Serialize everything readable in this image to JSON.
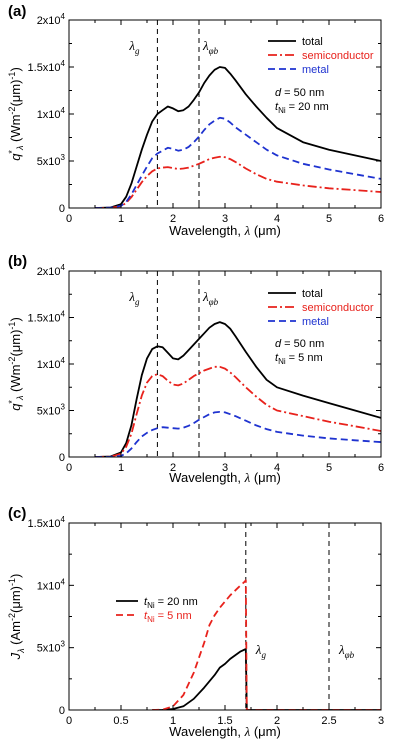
{
  "chart_data": [
    {
      "panel_label": "(a)",
      "type": "line",
      "xlabel": "Wavelength, λ (μm)",
      "ylabel": "q*λ (Wm-2(μm)-1)",
      "xlim": [
        0,
        6
      ],
      "ylim": [
        0,
        20000
      ],
      "x_ticks": [
        "0",
        "1",
        "2",
        "3",
        "4",
        "5",
        "6"
      ],
      "y_ticks": [
        "0",
        "5x10^3",
        "1x10^4",
        "1.5x10^4",
        "2x10^4"
      ],
      "vlines": [
        {
          "x": 1.7,
          "label": "λg"
        },
        {
          "x": 2.5,
          "label": "λφb"
        }
      ],
      "annotation": [
        "d = 50 nm",
        "tNi = 20 nm"
      ],
      "legend_position": "top-right",
      "series": [
        {
          "name": "total",
          "color": "#000000",
          "dash": "solid",
          "x": [
            0.5,
            0.8,
            1.0,
            1.1,
            1.2,
            1.3,
            1.4,
            1.5,
            1.6,
            1.7,
            1.8,
            1.9,
            2.0,
            2.1,
            2.2,
            2.3,
            2.4,
            2.5,
            2.6,
            2.7,
            2.8,
            2.9,
            3.0,
            3.1,
            3.2,
            3.4,
            3.6,
            3.8,
            4.0,
            4.5,
            5.0,
            5.5,
            6.0
          ],
          "values": [
            0,
            50,
            400,
            1200,
            2600,
            4400,
            6200,
            7800,
            9200,
            10000,
            10400,
            10800,
            10600,
            10300,
            10400,
            10800,
            11500,
            12300,
            13300,
            14100,
            14700,
            15000,
            14900,
            14300,
            13600,
            12100,
            10800,
            9600,
            8500,
            7000,
            6200,
            5600,
            5000
          ]
        },
        {
          "name": "semiconductor",
          "color": "#e8221c",
          "dash": "dashdot",
          "x": [
            0.5,
            0.8,
            1.0,
            1.1,
            1.2,
            1.3,
            1.4,
            1.5,
            1.6,
            1.7,
            1.8,
            1.9,
            2.0,
            2.1,
            2.2,
            2.3,
            2.4,
            2.5,
            2.6,
            2.7,
            2.8,
            2.9,
            3.0,
            3.1,
            3.2,
            3.4,
            3.6,
            3.8,
            4.0,
            4.5,
            5.0,
            5.5,
            6.0
          ],
          "values": [
            0,
            20,
            180,
            550,
            1150,
            1950,
            2750,
            3400,
            3900,
            4200,
            4300,
            4350,
            4250,
            4150,
            4200,
            4300,
            4500,
            4700,
            4950,
            5200,
            5350,
            5450,
            5400,
            5200,
            4900,
            4200,
            3600,
            3100,
            2800,
            2400,
            2100,
            1900,
            1700
          ]
        },
        {
          "name": "metal",
          "color": "#1f33d0",
          "dash": "dashed",
          "x": [
            0.5,
            0.8,
            1.0,
            1.1,
            1.2,
            1.3,
            1.4,
            1.5,
            1.6,
            1.7,
            1.8,
            1.9,
            2.0,
            2.1,
            2.2,
            2.3,
            2.4,
            2.5,
            2.6,
            2.7,
            2.8,
            2.9,
            3.0,
            3.1,
            3.2,
            3.4,
            3.6,
            3.8,
            4.0,
            4.5,
            5.0,
            5.5,
            6.0
          ],
          "values": [
            0,
            30,
            220,
            650,
            1450,
            2450,
            3450,
            4400,
            5300,
            5800,
            6100,
            6400,
            6300,
            6100,
            6200,
            6500,
            7000,
            7600,
            8300,
            8900,
            9300,
            9600,
            9500,
            9100,
            8600,
            7800,
            7000,
            6200,
            5600,
            4700,
            4100,
            3600,
            3100
          ]
        }
      ]
    },
    {
      "panel_label": "(b)",
      "type": "line",
      "xlabel": "Wavelength, λ (μm)",
      "ylabel": "q*λ (Wm-2(μm)-1)",
      "xlim": [
        0,
        6
      ],
      "ylim": [
        0,
        20000
      ],
      "x_ticks": [
        "0",
        "1",
        "2",
        "3",
        "4",
        "5",
        "6"
      ],
      "y_ticks": [
        "0",
        "5x10^3",
        "1x10^4",
        "1.5x10^4",
        "2x10^4"
      ],
      "vlines": [
        {
          "x": 1.7,
          "label": "λg"
        },
        {
          "x": 2.5,
          "label": "λφb"
        }
      ],
      "annotation": [
        "d = 50 nm",
        "tNi = 5 nm"
      ],
      "legend_position": "top-right",
      "series": [
        {
          "name": "total",
          "color": "#000000",
          "dash": "solid",
          "x": [
            0.5,
            0.8,
            1.0,
            1.1,
            1.2,
            1.3,
            1.4,
            1.5,
            1.6,
            1.7,
            1.8,
            1.9,
            2.0,
            2.1,
            2.2,
            2.3,
            2.4,
            2.5,
            2.6,
            2.7,
            2.8,
            2.9,
            3.0,
            3.1,
            3.2,
            3.4,
            3.6,
            3.8,
            4.0,
            4.5,
            5.0,
            5.5,
            6.0
          ],
          "values": [
            0,
            50,
            500,
            1500,
            3400,
            6200,
            8800,
            10600,
            11600,
            11900,
            11800,
            11200,
            10600,
            10500,
            10900,
            11500,
            12100,
            12700,
            13300,
            13900,
            14300,
            14500,
            14300,
            13800,
            13000,
            11300,
            9700,
            8300,
            7500,
            6600,
            5800,
            5000,
            4200
          ]
        },
        {
          "name": "semiconductor",
          "color": "#e8221c",
          "dash": "dashdot",
          "x": [
            0.5,
            0.8,
            1.0,
            1.1,
            1.2,
            1.3,
            1.4,
            1.5,
            1.6,
            1.7,
            1.8,
            1.9,
            2.0,
            2.1,
            2.2,
            2.3,
            2.4,
            2.5,
            2.6,
            2.7,
            2.8,
            2.9,
            3.0,
            3.1,
            3.2,
            3.4,
            3.6,
            3.8,
            4.0,
            4.5,
            5.0,
            5.5,
            6.0
          ],
          "values": [
            0,
            30,
            350,
            1100,
            2500,
            4600,
            6600,
            8000,
            8700,
            8900,
            8700,
            8200,
            7800,
            7700,
            7900,
            8300,
            8700,
            9000,
            9300,
            9500,
            9700,
            9700,
            9500,
            9100,
            8600,
            7500,
            6500,
            5600,
            5000,
            4400,
            3800,
            3300,
            2800
          ]
        },
        {
          "name": "metal",
          "color": "#1f33d0",
          "dash": "dashed",
          "x": [
            0.5,
            0.8,
            1.0,
            1.1,
            1.2,
            1.3,
            1.4,
            1.5,
            1.6,
            1.7,
            1.8,
            1.9,
            2.0,
            2.1,
            2.2,
            2.3,
            2.4,
            2.5,
            2.6,
            2.7,
            2.8,
            2.9,
            3.0,
            3.1,
            3.2,
            3.4,
            3.6,
            3.8,
            4.0,
            4.5,
            5.0,
            5.5,
            6.0
          ],
          "values": [
            0,
            10,
            120,
            400,
            900,
            1600,
            2200,
            2600,
            2900,
            3100,
            3200,
            3150,
            3100,
            3050,
            3150,
            3350,
            3650,
            4000,
            4300,
            4600,
            4800,
            4850,
            4800,
            4600,
            4400,
            3900,
            3400,
            3000,
            2700,
            2300,
            2000,
            1800,
            1600
          ]
        }
      ]
    },
    {
      "panel_label": "(c)",
      "type": "line",
      "xlabel": "Wavelength, λ (μm)",
      "ylabel": "Jλ (Am-2(μm)-1)",
      "xlim": [
        0,
        3
      ],
      "ylim": [
        0,
        15000
      ],
      "x_ticks": [
        "0",
        "0.5",
        "1",
        "1.5",
        "2",
        "2.5",
        "3"
      ],
      "y_ticks": [
        "0",
        "5x10^3",
        "1x10^4",
        "1.5x10^4"
      ],
      "vlines": [
        {
          "x": 1.7,
          "label": "λg"
        },
        {
          "x": 2.5,
          "label": "λφb"
        }
      ],
      "legend_position": "upper-left",
      "series": [
        {
          "name": "tNi = 20 nm",
          "color": "#000000",
          "dash": "solid",
          "x": [
            0.8,
            0.9,
            1.0,
            1.1,
            1.2,
            1.3,
            1.4,
            1.45,
            1.5,
            1.55,
            1.6,
            1.65,
            1.69,
            1.7,
            1.71,
            2.0,
            2.5,
            3.0
          ],
          "values": [
            0,
            10,
            80,
            300,
            900,
            1800,
            2800,
            3400,
            3700,
            4100,
            4400,
            4700,
            4850,
            4900,
            0,
            0,
            0,
            0
          ]
        },
        {
          "name": "tNi = 5 nm",
          "color": "#e8221c",
          "dash": "dashed",
          "x": [
            0.8,
            0.9,
            1.0,
            1.1,
            1.2,
            1.3,
            1.35,
            1.4,
            1.45,
            1.5,
            1.55,
            1.6,
            1.65,
            1.69,
            1.7,
            1.71,
            2.0,
            2.5,
            3.0
          ],
          "values": [
            0,
            30,
            300,
            1200,
            3000,
            5400,
            6800,
            7600,
            8200,
            8700,
            9200,
            9600,
            10000,
            10300,
            10400,
            0,
            0,
            0,
            0
          ]
        }
      ]
    }
  ]
}
